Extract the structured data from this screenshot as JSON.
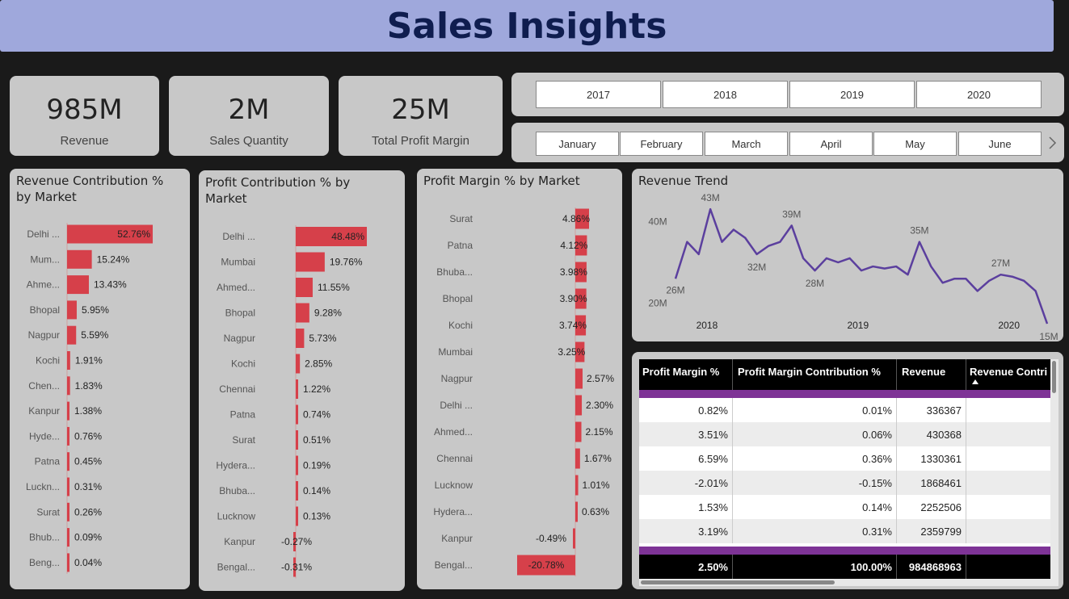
{
  "title": "Sales Insights",
  "kpis": [
    {
      "value": "985M",
      "label": "Revenue"
    },
    {
      "value": "2M",
      "label": "Sales Quantity"
    },
    {
      "value": "25M",
      "label": "Total Profit Margin"
    }
  ],
  "years": [
    "2017",
    "2018",
    "2019",
    "2020"
  ],
  "months": [
    "January",
    "February",
    "March",
    "April",
    "May",
    "June"
  ],
  "colors": {
    "bar": "#d6404a",
    "line": "#5b3f9e",
    "table_accent": "#7e3396"
  },
  "revenue_chart": {
    "title_line1": "Revenue Contribution %",
    "title_line2": "by Market"
  },
  "profit_chart": {
    "title_line1": "Profit Contribution % by",
    "title_line2": "Market"
  },
  "margin_chart": {
    "title": "Profit Margin % by Market"
  },
  "trend_chart": {
    "title": "Revenue Trend",
    "y_ticks": [
      "40M",
      "20M"
    ],
    "x_ticks": [
      "2018",
      "2019",
      "2020"
    ]
  },
  "chart_data": [
    {
      "type": "bar",
      "title": "Revenue Contribution % by Market",
      "categories": [
        "Delhi ...",
        "Mum...",
        "Ahme...",
        "Bhopal",
        "Nagpur",
        "Kochi",
        "Chen...",
        "Kanpur",
        "Hyde...",
        "Patna",
        "Luckn...",
        "Surat",
        "Bhub...",
        "Beng..."
      ],
      "values": [
        52.76,
        15.24,
        13.43,
        5.95,
        5.59,
        1.91,
        1.83,
        1.38,
        0.76,
        0.45,
        0.31,
        0.26,
        0.09,
        0.04
      ],
      "labels": [
        "52.76%",
        "15.24%",
        "13.43%",
        "5.95%",
        "5.59%",
        "1.91%",
        "1.83%",
        "1.38%",
        "0.76%",
        "0.45%",
        "0.31%",
        "0.26%",
        "0.09%",
        "0.04%"
      ]
    },
    {
      "type": "bar",
      "title": "Profit Contribution % by Market",
      "categories": [
        "Delhi ...",
        "Mumbai",
        "Ahmed...",
        "Bhopal",
        "Nagpur",
        "Kochi",
        "Chennai",
        "Patna",
        "Surat",
        "Hydera...",
        "Bhuba...",
        "Lucknow",
        "Kanpur",
        "Bengal..."
      ],
      "values": [
        48.48,
        19.76,
        11.55,
        9.28,
        5.73,
        2.85,
        1.22,
        0.74,
        0.51,
        0.19,
        0.14,
        0.13,
        -0.27,
        -0.31
      ],
      "labels": [
        "48.48%",
        "19.76%",
        "11.55%",
        "9.28%",
        "5.73%",
        "2.85%",
        "1.22%",
        "0.74%",
        "0.51%",
        "0.19%",
        "0.14%",
        "0.13%",
        "-0.27%",
        "-0.31%"
      ]
    },
    {
      "type": "bar",
      "title": "Profit Margin % by Market",
      "categories": [
        "Surat",
        "Patna",
        "Bhuba...",
        "Bhopal",
        "Kochi",
        "Mumbai",
        "Nagpur",
        "Delhi ...",
        "Ahmed...",
        "Chennai",
        "Lucknow",
        "Hydera...",
        "Kanpur",
        "Bengal..."
      ],
      "values": [
        4.86,
        4.12,
        3.98,
        3.9,
        3.74,
        3.25,
        2.57,
        2.3,
        2.15,
        1.67,
        1.01,
        0.63,
        -0.49,
        -20.78
      ],
      "labels": [
        "4.86%",
        "4.12%",
        "3.98%",
        "3.90%",
        "3.74%",
        "3.25%",
        "2.57%",
        "2.30%",
        "2.15%",
        "1.67%",
        "1.01%",
        "0.63%",
        "-0.49%",
        "-20.78%"
      ]
    },
    {
      "type": "line",
      "title": "Revenue Trend",
      "y_range_millions": [
        15,
        45
      ],
      "values_millions": [
        26,
        35,
        32,
        43,
        35,
        38,
        36,
        32,
        34,
        35,
        39,
        31,
        28,
        31,
        30,
        31,
        28,
        29,
        28.5,
        29,
        27,
        35,
        29,
        25,
        26,
        26,
        23,
        25.5,
        27,
        26.5,
        25.5,
        23,
        15
      ],
      "point_labels": [
        {
          "index": 0,
          "text": "26M"
        },
        {
          "index": 3,
          "text": "43M"
        },
        {
          "index": 7,
          "text": "32M"
        },
        {
          "index": 10,
          "text": "39M"
        },
        {
          "index": 12,
          "text": "28M"
        },
        {
          "index": 21,
          "text": "35M"
        },
        {
          "index": 28,
          "text": "27M"
        },
        {
          "index": 32,
          "text": "15M"
        }
      ]
    }
  ],
  "table": {
    "headers": [
      "Profit Margin %",
      "Profit Margin Contribution %",
      "Revenue",
      "Revenue Contri"
    ],
    "rows": [
      [
        "0.82%",
        "0.01%",
        "336367",
        ""
      ],
      [
        "3.51%",
        "0.06%",
        "430368",
        ""
      ],
      [
        "6.59%",
        "0.36%",
        "1330361",
        ""
      ],
      [
        "-2.01%",
        "-0.15%",
        "1868461",
        ""
      ],
      [
        "1.53%",
        "0.14%",
        "2252506",
        ""
      ],
      [
        "3.19%",
        "0.31%",
        "2359799",
        ""
      ]
    ],
    "totals": [
      "2.50%",
      "100.00%",
      "984868963",
      ""
    ]
  }
}
